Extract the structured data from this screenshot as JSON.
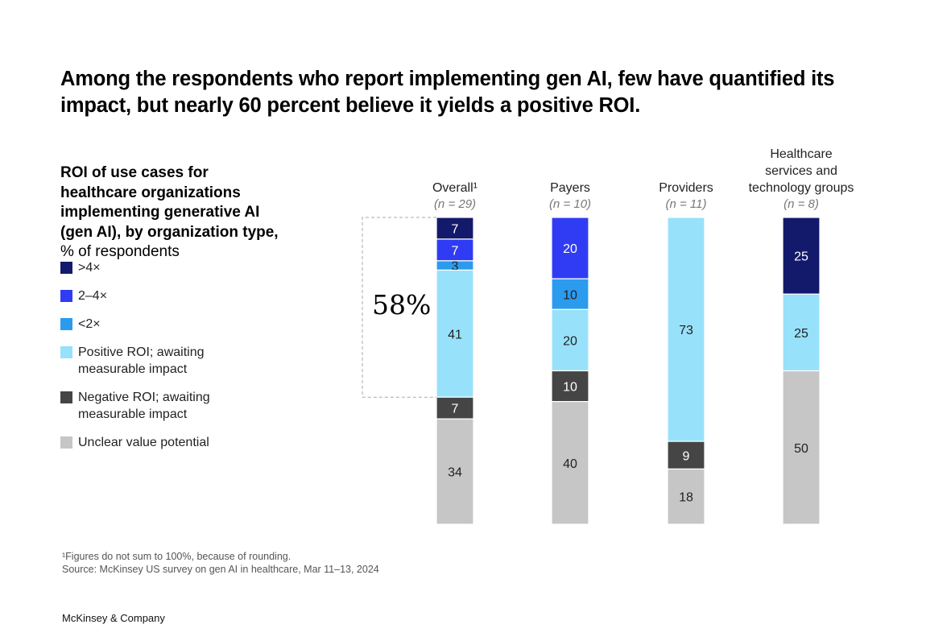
{
  "title": "Among the respondents who report implementing gen AI, few have quantified its impact, but nearly 60 percent believe it yields a positive ROI.",
  "subtitle_bold": "ROI of use cases for healthcare organizations implementing generative AI (gen AI), by organization type,",
  "subtitle_rest": " % of respondents",
  "annotation": "58%",
  "footnote": "¹Figures do not sum to 100%, because of rounding.",
  "source": "Source: McKinsey US survey on gen AI in healthcare, Mar 11–13, 2024",
  "brand": "McKinsey & Company",
  "chart_data": {
    "type": "stacked-bar",
    "categories": [
      {
        "label": [
          "Overall¹"
        ],
        "n": "(n = 29)"
      },
      {
        "label": [
          "Payers"
        ],
        "n": "(n = 10)"
      },
      {
        "label": [
          "Providers"
        ],
        "n": "(n = 11)"
      },
      {
        "label": [
          "Healthcare",
          "services and",
          "technology groups"
        ],
        "n": "(n = 8)"
      }
    ],
    "series": [
      {
        "name": ">4×",
        "color": "#141a6b",
        "text": "#ffffff",
        "values": [
          7,
          0,
          0,
          25
        ]
      },
      {
        "name": "2–4×",
        "color": "#2f3cf4",
        "text": "#ffffff",
        "values": [
          7,
          20,
          0,
          0
        ]
      },
      {
        "name": "<2×",
        "color": "#2b9bee",
        "text": "#222222",
        "values": [
          3,
          10,
          0,
          0
        ]
      },
      {
        "name": "Positive ROI; awaiting measurable impact",
        "color": "#98e1fb",
        "text": "#222222",
        "values": [
          41,
          20,
          73,
          25
        ]
      },
      {
        "name": "Negative ROI; awaiting measurable impact",
        "color": "#454545",
        "text": "#ffffff",
        "values": [
          7,
          10,
          9,
          0
        ]
      },
      {
        "name": "Unclear value potential",
        "color": "#c6c6c6",
        "text": "#222222",
        "values": [
          34,
          40,
          18,
          50
        ]
      }
    ],
    "unit": "% of respondents",
    "legend": "left"
  }
}
